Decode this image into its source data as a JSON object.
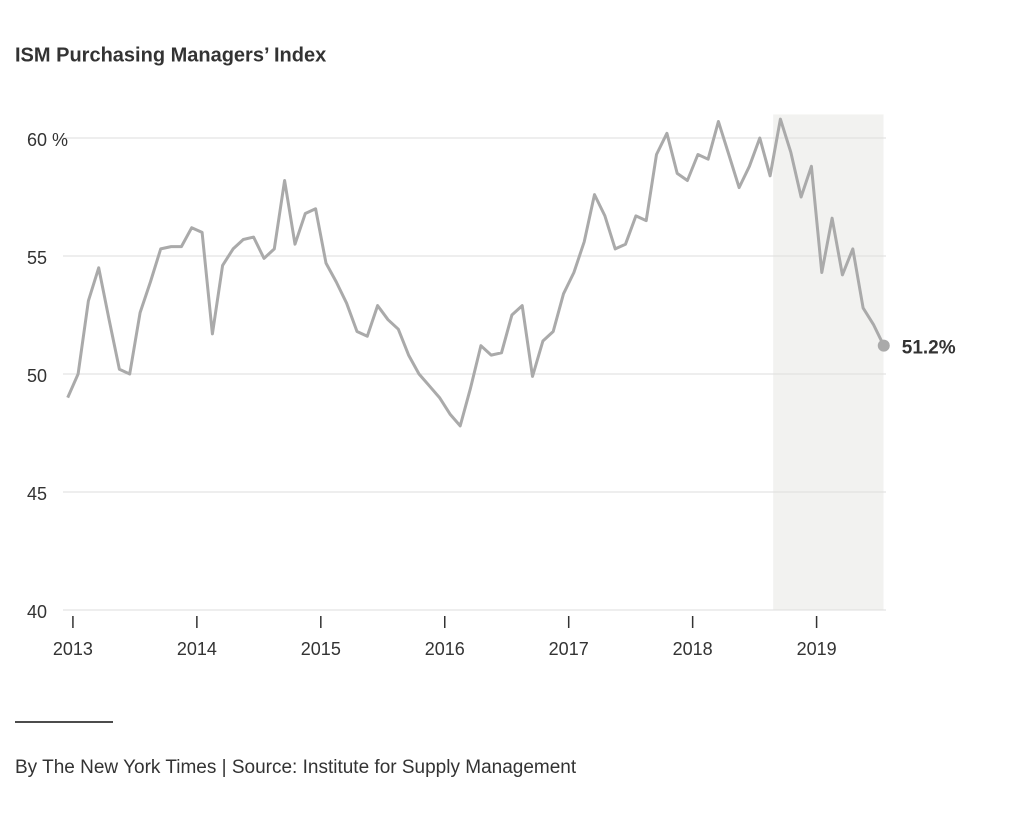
{
  "chart_data": {
    "type": "line",
    "title": "ISM Purchasing Managers’ Index",
    "source": "By The New York Times | Source: Institute for Supply Management",
    "x": [
      2012.958,
      2013.042,
      2013.125,
      2013.208,
      2013.292,
      2013.375,
      2013.458,
      2013.542,
      2013.625,
      2013.708,
      2013.792,
      2013.875,
      2013.958,
      2014.042,
      2014.125,
      2014.208,
      2014.292,
      2014.375,
      2014.458,
      2014.542,
      2014.625,
      2014.708,
      2014.792,
      2014.875,
      2014.958,
      2015.042,
      2015.125,
      2015.208,
      2015.292,
      2015.375,
      2015.458,
      2015.542,
      2015.625,
      2015.708,
      2015.792,
      2015.875,
      2015.958,
      2016.042,
      2016.125,
      2016.208,
      2016.292,
      2016.375,
      2016.458,
      2016.542,
      2016.625,
      2016.708,
      2016.792,
      2016.875,
      2016.958,
      2017.042,
      2017.125,
      2017.208,
      2017.292,
      2017.375,
      2017.458,
      2017.542,
      2017.625,
      2017.708,
      2017.792,
      2017.875,
      2017.958,
      2018.042,
      2018.125,
      2018.208,
      2018.292,
      2018.375,
      2018.458,
      2018.542,
      2018.625,
      2018.708,
      2018.792,
      2018.875,
      2018.958,
      2019.042,
      2019.125,
      2019.208,
      2019.292,
      2019.375,
      2019.458,
      2019.542
    ],
    "series": [
      {
        "color": "#aaaaaa",
        "values": [
          49.0,
          50.0,
          53.1,
          54.5,
          52.3,
          50.2,
          50.0,
          52.6,
          53.9,
          55.3,
          55.4,
          55.4,
          56.2,
          56.0,
          51.7,
          54.6,
          55.3,
          55.7,
          55.8,
          54.9,
          55.3,
          58.2,
          55.5,
          56.8,
          57.0,
          54.7,
          53.9,
          53.0,
          51.8,
          51.6,
          52.9,
          52.3,
          51.9,
          50.8,
          50.0,
          49.5,
          49.0,
          48.3,
          47.8,
          49.4,
          51.2,
          50.8,
          50.9,
          52.5,
          52.9,
          49.9,
          51.4,
          51.8,
          53.4,
          54.3,
          55.6,
          57.6,
          56.7,
          55.3,
          55.5,
          56.7,
          56.5,
          59.3,
          60.2,
          58.5,
          58.2,
          59.3,
          59.1,
          60.7,
          59.3,
          57.9,
          58.8,
          60.0,
          58.4,
          60.8,
          59.4,
          57.5,
          58.8,
          54.3,
          56.6,
          54.2,
          55.3,
          52.8,
          52.1,
          51.2
        ],
        "value_labels": [
          null,
          null,
          null,
          null,
          null,
          null,
          null,
          null,
          null,
          null,
          null,
          null,
          null,
          null,
          null,
          null,
          null,
          null,
          null,
          null,
          null,
          null,
          null,
          null,
          null,
          null,
          null,
          null,
          null,
          null,
          null,
          null,
          null,
          null,
          null,
          null,
          null,
          null,
          null,
          null,
          null,
          null,
          null,
          null,
          null,
          null,
          null,
          null,
          null,
          null,
          null,
          null,
          null,
          null,
          null,
          null,
          null,
          null,
          null,
          null,
          null,
          null,
          null,
          null,
          null,
          null,
          null,
          null,
          null,
          null,
          null,
          null,
          null,
          null,
          null,
          null,
          null,
          null,
          null,
          "51.2%"
        ]
      }
    ],
    "xlim": [
      2012.92,
      2019.56
    ],
    "xticks": [
      2013,
      2014,
      2015,
      2016,
      2017,
      2018,
      2019
    ],
    "ylim": [
      40,
      61
    ],
    "yticks": [
      40,
      45,
      50,
      55,
      {
        "value": 60,
        "label": "60 %"
      }
    ],
    "shade": [
      2018.65,
      2019.54
    ],
    "shade_color": "#f2f2f0",
    "grid": true
  }
}
